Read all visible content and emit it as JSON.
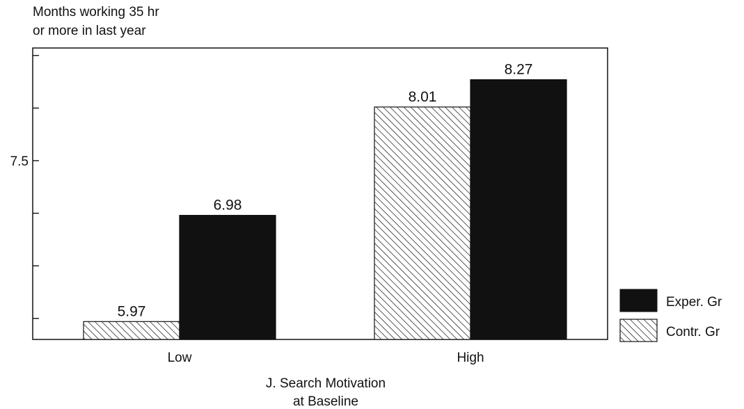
{
  "chart_data": {
    "type": "bar",
    "ylabel_lines": [
      "Months working 35 hr",
      "or more in last year"
    ],
    "xlabel_lines": [
      "J. Search Motivation",
      "at Baseline"
    ],
    "categories": [
      "Low",
      "High"
    ],
    "series": [
      {
        "name": "Contr. Gr",
        "values": [
          5.97,
          8.01
        ],
        "value_labels": [
          "5.97",
          "8.01"
        ],
        "fill": "hatch"
      },
      {
        "name": "Exper. Gr",
        "values": [
          6.98,
          8.27
        ],
        "value_labels": [
          "6.98",
          "8.27"
        ],
        "fill": "solid"
      }
    ],
    "yticks": [
      6.0,
      6.5,
      7.0,
      7.5,
      8.0,
      8.5
    ],
    "ytick_labels": [
      "",
      "",
      "",
      "7.5",
      "",
      ""
    ],
    "ylim": [
      5.8,
      8.5
    ],
    "grid": false,
    "legend": {
      "position": "right",
      "entries": [
        {
          "label": "Exper. Gr",
          "fill": "solid"
        },
        {
          "label": "Contr. Gr",
          "fill": "hatch"
        }
      ]
    },
    "colors": {
      "solid": "#111111",
      "hatch_line": "#111111",
      "background": "#ffffff"
    }
  }
}
